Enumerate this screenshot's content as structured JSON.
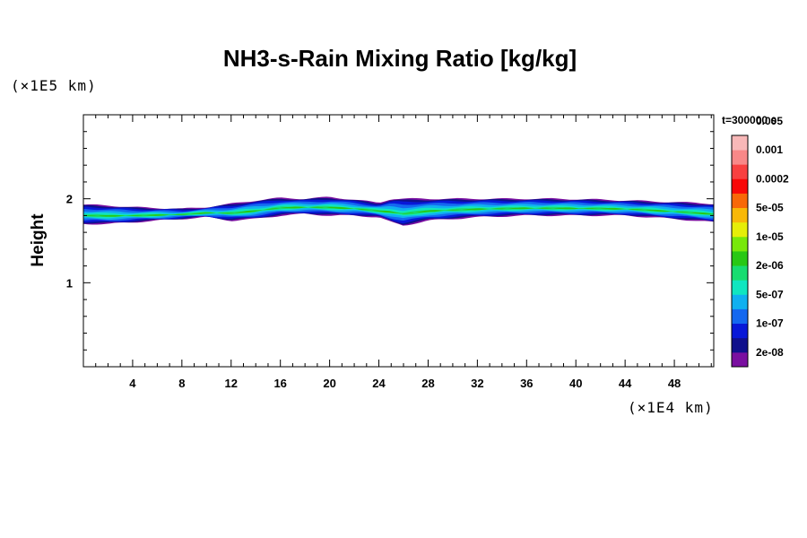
{
  "chart_data": {
    "type": "heatmap",
    "title": "NH3-s-Rain Mixing Ratio [kg/kg]",
    "xlabel": "",
    "ylabel": "Height",
    "x_unit": "(×1E4 km)",
    "y_unit": "(×1E5 km)",
    "time": "t=300000 s",
    "xlim": [
      0,
      51.2
    ],
    "ylim": [
      0,
      3
    ],
    "x_ticks": [
      4,
      8,
      12,
      16,
      20,
      24,
      28,
      32,
      36,
      40,
      44,
      48
    ],
    "x_tick_labels": [
      "4",
      "8",
      "12",
      "16",
      "20",
      "24",
      "28",
      "32",
      "36",
      "40",
      "44",
      "48"
    ],
    "y_ticks": [
      1,
      2
    ],
    "y_tick_labels": [
      "1",
      "2"
    ],
    "colorbar": {
      "levels": [
        "2e-08",
        "1e-07",
        "5e-07",
        "2e-06",
        "1e-05",
        "5e-05",
        "0.0002",
        "0.001",
        "0.005"
      ],
      "colors": [
        "#7a0fa0",
        "#10108c",
        "#0818d8",
        "#1468f0",
        "#10b0f0",
        "#10e6c0",
        "#18dc70",
        "#28c814",
        "#78e80a",
        "#e6ee08",
        "#f8b808",
        "#f86808",
        "#f80808",
        "#f84040",
        "#f88888",
        "#f8b8b8"
      ]
    },
    "field": {
      "top_profile": [
        [
          0,
          1.93
        ],
        [
          2,
          1.92
        ],
        [
          4,
          1.9
        ],
        [
          6,
          1.89
        ],
        [
          8,
          1.88
        ],
        [
          10,
          1.9
        ],
        [
          12,
          1.94
        ],
        [
          14,
          1.98
        ],
        [
          16,
          2.01
        ],
        [
          18,
          2.0
        ],
        [
          20,
          2.02
        ],
        [
          22,
          1.99
        ],
        [
          24,
          1.95
        ],
        [
          25,
          2.0
        ],
        [
          27,
          2.0
        ],
        [
          30,
          2.0
        ],
        [
          34,
          2.0
        ],
        [
          38,
          2.0
        ],
        [
          42,
          1.99
        ],
        [
          46,
          1.97
        ],
        [
          50,
          1.95
        ],
        [
          51.2,
          1.94
        ]
      ],
      "bottom_profile": [
        [
          0,
          1.7
        ],
        [
          2,
          1.7
        ],
        [
          4,
          1.72
        ],
        [
          6,
          1.74
        ],
        [
          8,
          1.76
        ],
        [
          10,
          1.78
        ],
        [
          12,
          1.74
        ],
        [
          14,
          1.76
        ],
        [
          16,
          1.8
        ],
        [
          18,
          1.82
        ],
        [
          20,
          1.8
        ],
        [
          22,
          1.8
        ],
        [
          24,
          1.78
        ],
        [
          25,
          1.72
        ],
        [
          26,
          1.68
        ],
        [
          28,
          1.74
        ],
        [
          32,
          1.78
        ],
        [
          36,
          1.8
        ],
        [
          40,
          1.8
        ],
        [
          44,
          1.8
        ],
        [
          48,
          1.76
        ],
        [
          51.2,
          1.72
        ]
      ]
    }
  }
}
